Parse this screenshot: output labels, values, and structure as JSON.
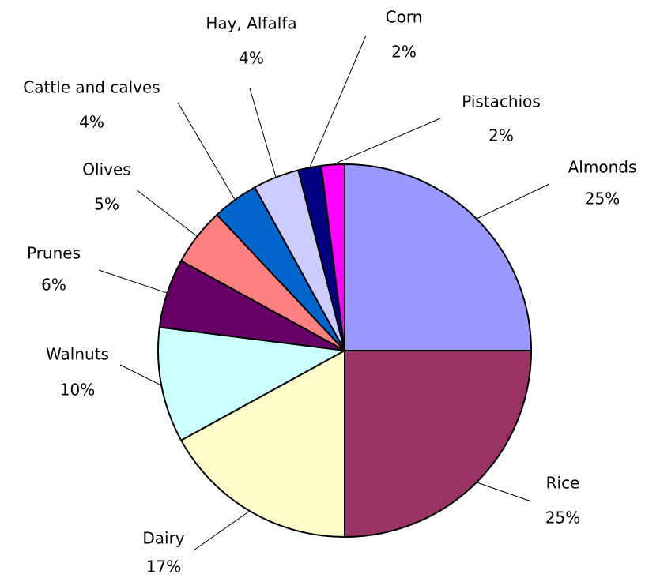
{
  "chart_data": {
    "type": "pie",
    "categories": [
      "Almonds",
      "Rice",
      "Dairy",
      "Walnuts",
      "Prunes",
      "Olives",
      "Cattle and calves",
      "Hay, Alfalfa",
      "Corn",
      "Pistachios"
    ],
    "values": [
      25,
      25,
      17,
      10,
      6,
      5,
      4,
      4,
      2,
      2
    ],
    "value_labels": [
      "25%",
      "25%",
      "17%",
      "10%",
      "6%",
      "5%",
      "4%",
      "4%",
      "2%",
      "2%"
    ],
    "colors": [
      "#9999ff",
      "#993366",
      "#ffffcc",
      "#ccffff",
      "#660066",
      "#ff8080",
      "#0066cc",
      "#ccccff",
      "#000080",
      "#ff00ff"
    ]
  }
}
